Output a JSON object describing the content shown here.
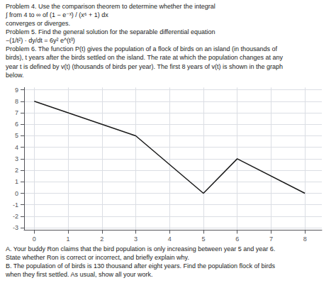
{
  "chart_data": {
    "type": "line",
    "annotations": [
      "Problem 4. Use the comparison theorem to determine whether the integral",
      "∫ from 4 to ∞ of (1 − e⁻ˣ) / (x⁶ + 1) dx",
      "converges or diverges.",
      "Problem 5. Find the general solution for the separable differential equation",
      "−(1/t²) · dy/dt = 6y² e^(t³)",
      "Problem 6. The function P(t) gives the population of a flock of birds on an island (in thousands of",
      "birds), t years after the birds settled on the island. The rate at which the population changes at any",
      "year t is defined by v(t) (thousands of birds per year). The first 8 years of v(t) is shown in the graph",
      "below."
    ],
    "x": [
      0,
      3,
      5,
      6,
      8
    ],
    "values": [
      8,
      5,
      0,
      3,
      0
    ],
    "color": "#1a1a1a",
    "xlim": [
      -0.3,
      8.5
    ],
    "ylim": [
      -3.2,
      9.2
    ],
    "xticks": [
      0,
      1,
      2,
      3,
      4,
      5,
      6,
      7,
      8
    ],
    "yticks": [
      -3,
      -2,
      -1,
      0,
      1,
      2,
      3,
      4,
      5,
      6,
      7,
      8,
      9
    ],
    "grid": true,
    "caption": [
      "A. Your buddy Ron claims that the bird population is only increasing between year 5 and year 6.",
      "State whether Ron is correct or incorrect, and briefly explain why.",
      "B. The population of of birds is 130 thousand after eight years. Find the population flock of birds",
      "when they first settled. As usual, show all your work."
    ]
  }
}
